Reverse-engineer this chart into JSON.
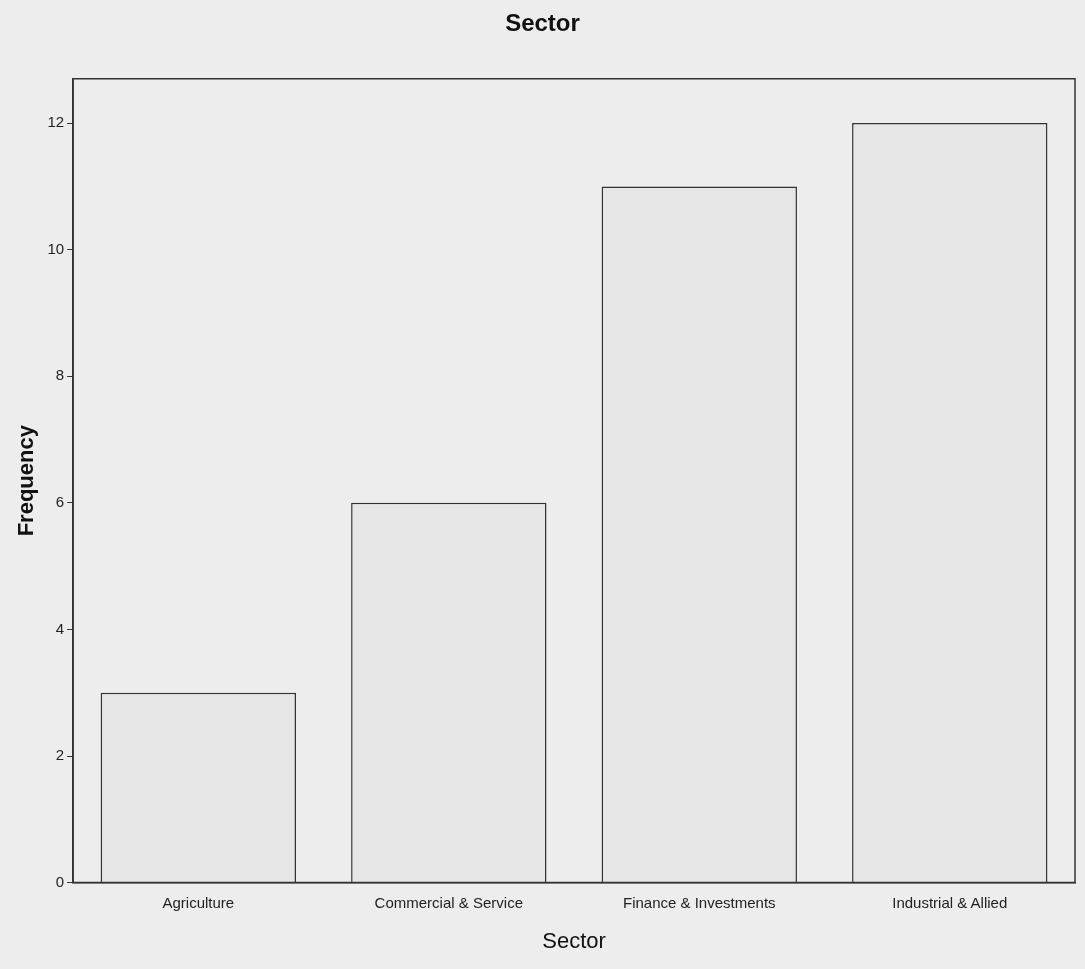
{
  "chart_data": {
    "type": "bar",
    "title": "Sector",
    "xlabel": "Sector",
    "ylabel": "Frequency",
    "categories": [
      "Agriculture",
      "Commercial & Service",
      "Finance & Investments",
      "Industrial & Allied"
    ],
    "values": [
      3,
      6,
      11,
      12
    ],
    "color": "#e6e6e6",
    "ylim": [
      0,
      12.7
    ],
    "yticks": [
      0,
      2,
      4,
      6,
      8,
      10,
      12
    ],
    "grid": false,
    "legend": false
  }
}
